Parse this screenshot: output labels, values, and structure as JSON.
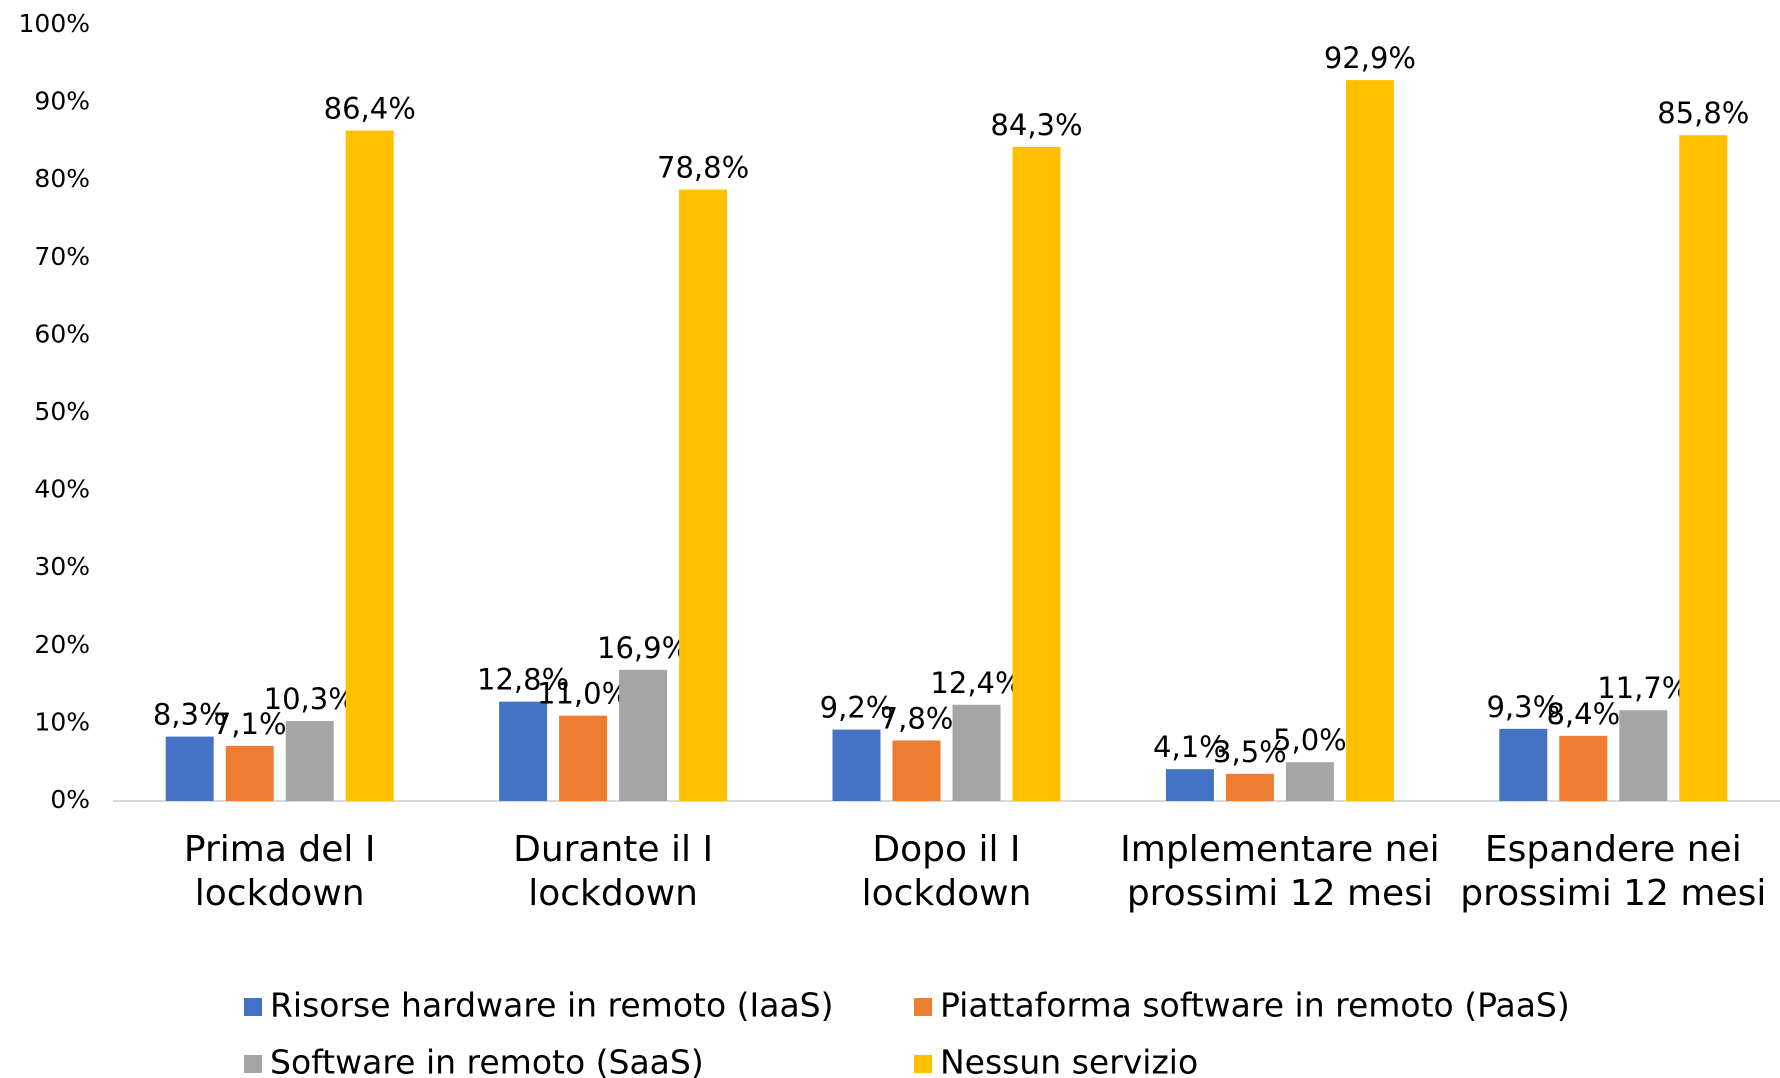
{
  "chart_data": {
    "type": "bar",
    "categories": [
      "Prima del I lockdown",
      "Durante il I lockdown",
      "Dopo il I lockdown",
      "Implementare nei prossimi 12 mesi",
      "Espandere nei prossimi 12 mesi"
    ],
    "series": [
      {
        "name": "Risorse hardware in remoto (IaaS)",
        "color": "#4472c4",
        "values": [
          8.3,
          12.8,
          9.2,
          4.1,
          9.3
        ],
        "value_labels": [
          "8,3%",
          "12,8%",
          "9,2%",
          "4,1%",
          "9,3%"
        ]
      },
      {
        "name": "Piattaforma software in remoto (PaaS)",
        "color": "#ed7d31",
        "values": [
          7.1,
          11.0,
          7.8,
          3.5,
          8.4
        ],
        "value_labels": [
          "7,1%",
          "11,0%",
          "7,8%",
          "3,5%",
          "8,4%"
        ]
      },
      {
        "name": "Software in remoto (SaaS)",
        "color": "#a5a5a5",
        "values": [
          10.3,
          16.9,
          12.4,
          5.0,
          11.7
        ],
        "value_labels": [
          "10,3%",
          "16,9%",
          "12,4%",
          "5,0%",
          "11,7%"
        ]
      },
      {
        "name": "Nessun servizio",
        "color": "#ffc000",
        "values": [
          86.4,
          78.8,
          84.3,
          92.9,
          85.8
        ],
        "value_labels": [
          "86,4%",
          "78,8%",
          "84,3%",
          "92,9%",
          "85,8%"
        ]
      }
    ],
    "ylim": [
      0,
      100
    ],
    "yticks": [
      {
        "value": 0,
        "label": "0%"
      },
      {
        "value": 10,
        "label": "10%"
      },
      {
        "value": 20,
        "label": "20%"
      },
      {
        "value": 30,
        "label": "30%"
      },
      {
        "value": 40,
        "label": "40%"
      },
      {
        "value": 50,
        "label": "50%"
      },
      {
        "value": 60,
        "label": "60%"
      },
      {
        "value": 70,
        "label": "70%"
      },
      {
        "value": 80,
        "label": "80%"
      },
      {
        "value": 90,
        "label": "90%"
      },
      {
        "value": 100,
        "label": "100%"
      }
    ],
    "grid": false,
    "legend": "bottom"
  }
}
